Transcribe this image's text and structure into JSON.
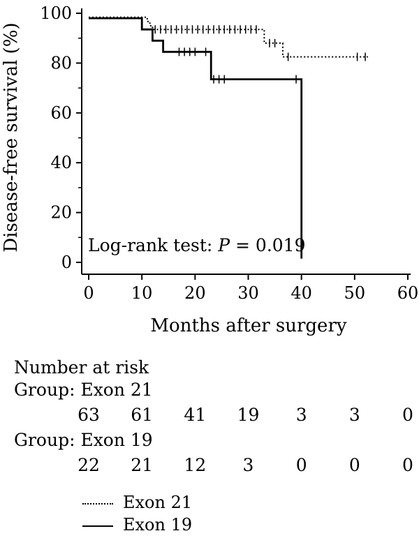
{
  "chart_data": {
    "type": "line",
    "subtype": "kaplan-meier",
    "xlabel": "Months after surgery",
    "ylabel": "Disease-free survival (%)",
    "xlim": [
      0,
      60
    ],
    "ylim": [
      0,
      100
    ],
    "xticks": [
      0,
      10,
      20,
      30,
      40,
      50,
      60
    ],
    "yticks": [
      0,
      20,
      40,
      60,
      80,
      100
    ],
    "annotation": {
      "prefix": "Log-rank test: ",
      "italic": "P",
      "suffix": " = 0.019"
    },
    "series": [
      {
        "name": "Exon 21",
        "style": "dotted",
        "steps": [
          [
            0,
            98.4
          ],
          [
            11,
            96.7
          ],
          [
            11.5,
            95
          ],
          [
            12,
            93.5
          ],
          [
            16,
            93.5
          ],
          [
            33,
            93.5
          ],
          [
            33,
            88
          ],
          [
            36.5,
            88
          ],
          [
            36.5,
            82.5
          ],
          [
            52.5,
            82.5
          ]
        ],
        "censors": [
          [
            12.5,
            93.5
          ],
          [
            13.5,
            93.5
          ],
          [
            14.5,
            93.5
          ],
          [
            15.5,
            93.5
          ],
          [
            16.5,
            93.5
          ],
          [
            17.5,
            93.5
          ],
          [
            18.5,
            93.5
          ],
          [
            19.5,
            93.5
          ],
          [
            20.5,
            93.5
          ],
          [
            21.5,
            93.5
          ],
          [
            22.5,
            93.5
          ],
          [
            23.5,
            93.5
          ],
          [
            24.5,
            93.5
          ],
          [
            25.5,
            93.5
          ],
          [
            26.5,
            93.5
          ],
          [
            27.5,
            93.5
          ],
          [
            28.5,
            93.5
          ],
          [
            29.5,
            93.5
          ],
          [
            30.5,
            93.5
          ],
          [
            31.5,
            93.5
          ],
          [
            34,
            88
          ],
          [
            35,
            88
          ],
          [
            37.5,
            82.5
          ],
          [
            50.5,
            82.5
          ],
          [
            52,
            82.5
          ]
        ]
      },
      {
        "name": "Exon 19",
        "style": "solid",
        "steps": [
          [
            0,
            98
          ],
          [
            10,
            98
          ],
          [
            10,
            93.5
          ],
          [
            12,
            93.5
          ],
          [
            12,
            89
          ],
          [
            14,
            89
          ],
          [
            14,
            84.5
          ],
          [
            23,
            84.5
          ],
          [
            23,
            73.5
          ],
          [
            40,
            73.5
          ],
          [
            40,
            1.5
          ]
        ],
        "censors": [
          [
            17,
            84.5
          ],
          [
            18,
            84.5
          ],
          [
            19,
            84.5
          ],
          [
            20,
            84.5
          ],
          [
            22,
            84.5
          ],
          [
            23.5,
            73.5
          ],
          [
            24.5,
            73.5
          ],
          [
            25.5,
            73.5
          ],
          [
            39,
            73.5
          ]
        ]
      }
    ]
  },
  "risk_table": {
    "title": "Number at risk",
    "groups": [
      {
        "label": "Group: Exon 21",
        "values": [
          "63",
          "61",
          "41",
          "19",
          "3",
          "3",
          "0"
        ]
      },
      {
        "label": "Group: Exon 19",
        "values": [
          "22",
          "21",
          "12",
          "3",
          "0",
          "0",
          "0"
        ]
      }
    ]
  },
  "legend": [
    {
      "label": "Exon 21",
      "style": "dotted"
    },
    {
      "label": "Exon 19",
      "style": "solid"
    }
  ]
}
